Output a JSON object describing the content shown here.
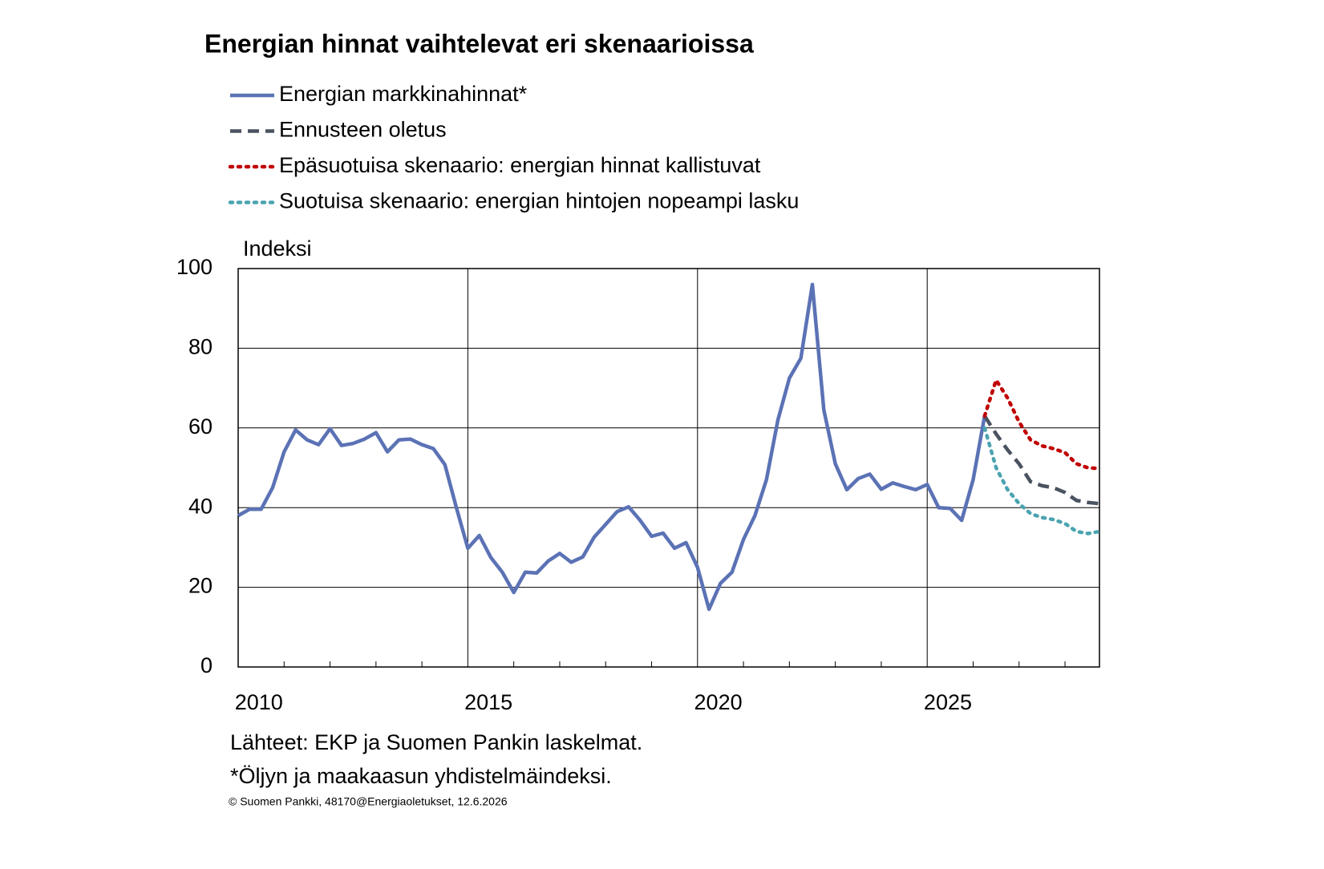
{
  "chart_data": {
    "type": "line",
    "title": "Energian hinnat vaihtelevat eri skenaarioissa",
    "ylabel": "Indeksi",
    "xlim": [
      2010,
      2028.75
    ],
    "xticks": [
      2010,
      2015,
      2020,
      2025
    ],
    "xminorticks": [
      2011,
      2012,
      2013,
      2014,
      2016,
      2017,
      2018,
      2019,
      2021,
      2022,
      2023,
      2024,
      2026,
      2027,
      2028
    ],
    "ylim": [
      0,
      100
    ],
    "yticks": [
      0,
      20,
      40,
      60,
      80,
      100
    ],
    "grid": true,
    "series": [
      {
        "name": "Energian markkinahinnat*",
        "color": "#5b72b5",
        "style": "solid",
        "x": [
          2010,
          2010.25,
          2010.5,
          2010.75,
          2011,
          2011.25,
          2011.5,
          2011.75,
          2012,
          2012.25,
          2012.5,
          2012.75,
          2013,
          2013.25,
          2013.5,
          2013.75,
          2014,
          2014.25,
          2014.5,
          2014.75,
          2015,
          2015.25,
          2015.5,
          2015.75,
          2016,
          2016.25,
          2016.5,
          2016.75,
          2017,
          2017.25,
          2017.5,
          2017.75,
          2018,
          2018.25,
          2018.5,
          2018.75,
          2019,
          2019.25,
          2019.5,
          2019.75,
          2020,
          2020.25,
          2020.5,
          2020.75,
          2021,
          2021.25,
          2021.5,
          2021.75,
          2022,
          2022.25,
          2022.5,
          2022.75,
          2023,
          2023.25,
          2023.5,
          2023.75,
          2024,
          2024.25,
          2024.5,
          2024.75,
          2025,
          2025.25,
          2025.5,
          2025.75,
          2026,
          2026.25
        ],
        "values": [
          38,
          39.6,
          39.6,
          45,
          54,
          59.5,
          57,
          55.8,
          59.8,
          55.6,
          56.1,
          57.2,
          58.8,
          54,
          57,
          57.2,
          55.8,
          54.8,
          50.8,
          40,
          29.8,
          33,
          27.5,
          23.8,
          18.7,
          23.8,
          23.6,
          26.6,
          28.5,
          26.3,
          27.6,
          32.6,
          35.8,
          39,
          40.2,
          36.8,
          32.8,
          33.6,
          29.8,
          31.2,
          25,
          14.5,
          21,
          23.8,
          32,
          38,
          47,
          62,
          72.5,
          77.5,
          96,
          64.5,
          51,
          44.5,
          47.3,
          48.4,
          44.6,
          46.2,
          45.3,
          44.5,
          45.8,
          40,
          39.8,
          36.8,
          47,
          63
        ]
      },
      {
        "name": "Ennusteen oletus",
        "color": "#4a5360",
        "style": "dashed",
        "x": [
          2026.25,
          2026.5,
          2026.75,
          2027,
          2027.25,
          2027.5,
          2027.75,
          2028,
          2028.25,
          2028.5,
          2028.75
        ],
        "values": [
          63,
          58.5,
          54.5,
          51,
          46.5,
          45.5,
          45,
          43.8,
          41.8,
          41.3,
          41
        ]
      },
      {
        "name": "Epäsuotuisa skenaario: energian hinnat kallistuvat",
        "color": "#c00000",
        "style": "dotted",
        "x": [
          2026.25,
          2026.5,
          2026.75,
          2027,
          2027.25,
          2027.5,
          2027.75,
          2028,
          2028.25,
          2028.5,
          2028.75
        ],
        "values": [
          63,
          72,
          67.5,
          61.5,
          57,
          55.5,
          54.8,
          53.8,
          51,
          50,
          49.8
        ]
      },
      {
        "name": "Suotuisa skenaario: energian hintojen nopeampi lasku",
        "color": "#4aa3b0",
        "style": "dotted",
        "x": [
          2026.25,
          2026.5,
          2026.75,
          2027,
          2027.25,
          2027.5,
          2027.75,
          2028,
          2028.25,
          2028.5,
          2028.75
        ],
        "values": [
          60,
          50,
          44.5,
          41,
          38.5,
          37.5,
          37,
          36,
          34,
          33.5,
          34
        ]
      }
    ],
    "notes": [
      "Lähteet: EKP ja Suomen Pankin laskelmat.",
      "*Öljyn ja maakaasun yhdistelmäindeksi."
    ],
    "footer": "© Suomen Pankki, 48170@Energiaoletukset,  12.6.2026"
  }
}
